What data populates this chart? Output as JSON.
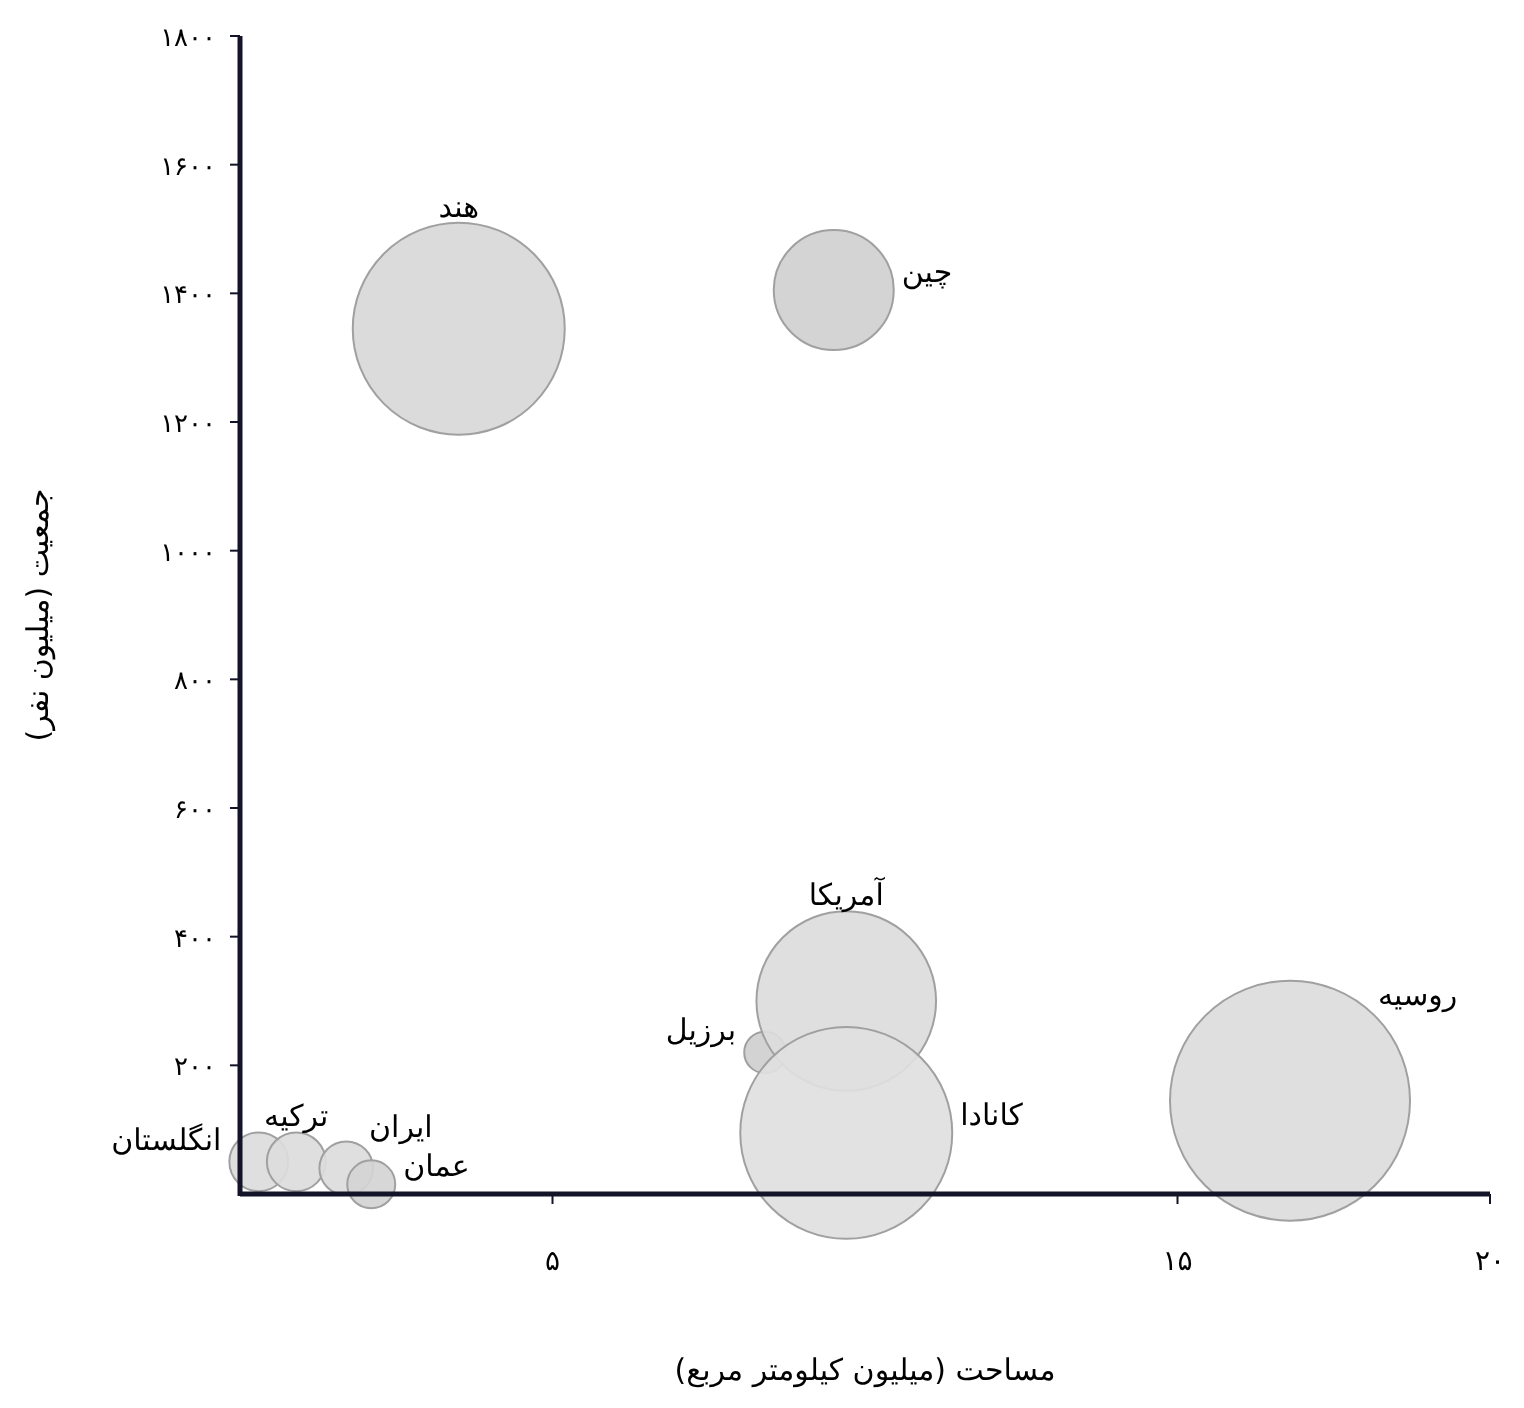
{
  "chart_data": {
    "type": "bubble",
    "xlabel": "مساحت (میلیون کیلومتر مربع)",
    "ylabel": "جمعیت (میلیون نفر)",
    "xlim": [
      0,
      20
    ],
    "ylim": [
      0,
      1800
    ],
    "xticks": [
      {
        "value": 5,
        "label": "۵"
      },
      {
        "value": 15,
        "label": "۱۵"
      },
      {
        "value": 20,
        "label": "۲۰"
      }
    ],
    "yticks": [
      {
        "value": 200,
        "label": "۲۰۰"
      },
      {
        "value": 400,
        "label": "۴۰۰"
      },
      {
        "value": 600,
        "label": "۶۰۰"
      },
      {
        "value": 800,
        "label": "۸۰۰"
      },
      {
        "value": 1000,
        "label": "۱۰۰۰"
      },
      {
        "value": 1200,
        "label": "۱۲۰۰"
      },
      {
        "value": 1400,
        "label": "۱۴۰۰"
      },
      {
        "value": 1600,
        "label": "۱۶۰۰"
      },
      {
        "value": 1800,
        "label": "۱۸۰۰"
      }
    ],
    "series": [
      {
        "name": "انگلستان",
        "color": "#dcdcdc",
        "x": [
          0.3
        ],
        "values": [
          50
        ],
        "sizes": [
          0.06
        ]
      },
      {
        "name": "ترکیه",
        "color": "#dcdcdc",
        "x": [
          0.9
        ],
        "values": [
          50
        ],
        "sizes": [
          0.06
        ]
      },
      {
        "name": "ایران",
        "color": "#dcdcdc",
        "x": [
          1.7
        ],
        "values": [
          40
        ],
        "sizes": [
          0.05
        ]
      },
      {
        "name": "عمان",
        "color": "#d4d4d4",
        "x": [
          2.1
        ],
        "values": [
          15
        ],
        "sizes": [
          0.04
        ]
      },
      {
        "name": "هند",
        "color": "#d8d8d8",
        "x": [
          3.5
        ],
        "values": [
          1345
        ],
        "sizes": [
          0.78
        ]
      },
      {
        "name": "چین",
        "color": "#d0d0d0",
        "x": [
          9.5
        ],
        "values": [
          1405
        ],
        "sizes": [
          0.25
        ]
      },
      {
        "name": "برزیل",
        "color": "#cfcfcf",
        "x": [
          8.4
        ],
        "values": [
          220
        ],
        "sizes": [
          0.03
        ]
      },
      {
        "name": "آمریکا",
        "color": "#dcdcdc",
        "x": [
          9.7
        ],
        "values": [
          300
        ],
        "sizes": [
          0.56
        ]
      },
      {
        "name": "کانادا",
        "color": "#dfdfdf",
        "x": [
          9.7
        ],
        "values": [
          95
        ],
        "sizes": [
          0.78
        ]
      },
      {
        "name": "روسیه",
        "color": "#dcdcdc",
        "x": [
          16.8
        ],
        "values": [
          145
        ],
        "sizes": [
          1
        ]
      }
    ]
  }
}
